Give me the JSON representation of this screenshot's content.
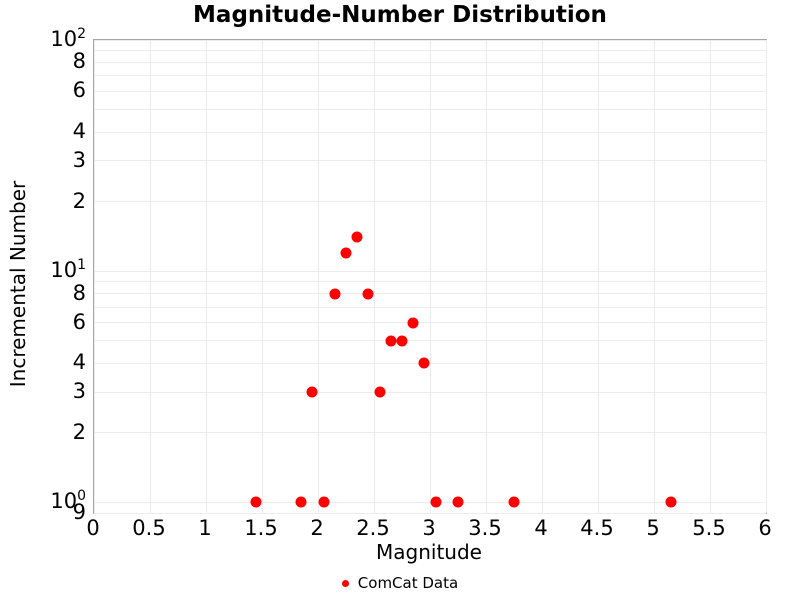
{
  "title": "Magnitude-Number Distribution",
  "axes": {
    "x": {
      "label": "Magnitude",
      "lim": [
        0,
        6
      ],
      "ticks": [
        {
          "v": 0,
          "label": "0"
        },
        {
          "v": 0.5,
          "label": "0.5"
        },
        {
          "v": 1,
          "label": "1"
        },
        {
          "v": 1.5,
          "label": "1.5"
        },
        {
          "v": 2,
          "label": "2"
        },
        {
          "v": 2.5,
          "label": "2.5"
        },
        {
          "v": 3,
          "label": "3"
        },
        {
          "v": 3.5,
          "label": "3.5"
        },
        {
          "v": 4,
          "label": "4"
        },
        {
          "v": 4.5,
          "label": "4.5"
        },
        {
          "v": 5,
          "label": "5"
        },
        {
          "v": 5.5,
          "label": "5.5"
        },
        {
          "v": 6,
          "label": "6"
        }
      ]
    },
    "y": {
      "label": "Incremental Number",
      "scale": "log",
      "lim": [
        0.9,
        100
      ],
      "ticks": [
        {
          "v": 100,
          "type": "major",
          "base": "10",
          "exp": "2"
        },
        {
          "v": 80,
          "type": "minor",
          "label": "8"
        },
        {
          "v": 60,
          "type": "minor",
          "label": "6"
        },
        {
          "v": 40,
          "type": "minor",
          "label": "4"
        },
        {
          "v": 30,
          "type": "minor",
          "label": "3"
        },
        {
          "v": 20,
          "type": "minor",
          "label": "2"
        },
        {
          "v": 10,
          "type": "major",
          "base": "10",
          "exp": "1"
        },
        {
          "v": 8,
          "type": "minor",
          "label": "8"
        },
        {
          "v": 6,
          "type": "minor",
          "label": "6"
        },
        {
          "v": 4,
          "type": "minor",
          "label": "4"
        },
        {
          "v": 3,
          "type": "minor",
          "label": "3"
        },
        {
          "v": 2,
          "type": "minor",
          "label": "2"
        },
        {
          "v": 1,
          "type": "major",
          "base": "10",
          "exp": "0"
        },
        {
          "v": 0.9,
          "type": "minor",
          "label": "9"
        }
      ],
      "gridline_values": [
        0.9,
        1,
        2,
        3,
        4,
        5,
        6,
        7,
        8,
        9,
        10,
        20,
        30,
        40,
        50,
        60,
        70,
        80,
        90,
        100
      ]
    }
  },
  "legend": {
    "label": "ComCat Data",
    "marker_color": "#ff0000"
  },
  "colors": {
    "point": "#ff0000",
    "grid": "#ececec",
    "spine": "#a6a6a6"
  },
  "chart_data": {
    "type": "scatter",
    "title": "Magnitude-Number Distribution",
    "xlabel": "Magnitude",
    "ylabel": "Incremental Number",
    "xlim": [
      0,
      6
    ],
    "ylim": [
      0.9,
      100
    ],
    "yscale": "log",
    "grid": true,
    "legend_position": "bottom-center",
    "series": [
      {
        "name": "ComCat Data",
        "color": "#ff0000",
        "points": [
          {
            "x": 1.45,
            "y": 1
          },
          {
            "x": 1.85,
            "y": 1
          },
          {
            "x": 1.95,
            "y": 3
          },
          {
            "x": 2.05,
            "y": 1
          },
          {
            "x": 2.15,
            "y": 8
          },
          {
            "x": 2.25,
            "y": 12
          },
          {
            "x": 2.35,
            "y": 14
          },
          {
            "x": 2.45,
            "y": 8
          },
          {
            "x": 2.55,
            "y": 3
          },
          {
            "x": 2.65,
            "y": 5
          },
          {
            "x": 2.75,
            "y": 5
          },
          {
            "x": 2.85,
            "y": 6
          },
          {
            "x": 2.95,
            "y": 4
          },
          {
            "x": 3.05,
            "y": 1
          },
          {
            "x": 3.25,
            "y": 1
          },
          {
            "x": 3.75,
            "y": 1
          },
          {
            "x": 5.15,
            "y": 1
          }
        ]
      }
    ]
  }
}
